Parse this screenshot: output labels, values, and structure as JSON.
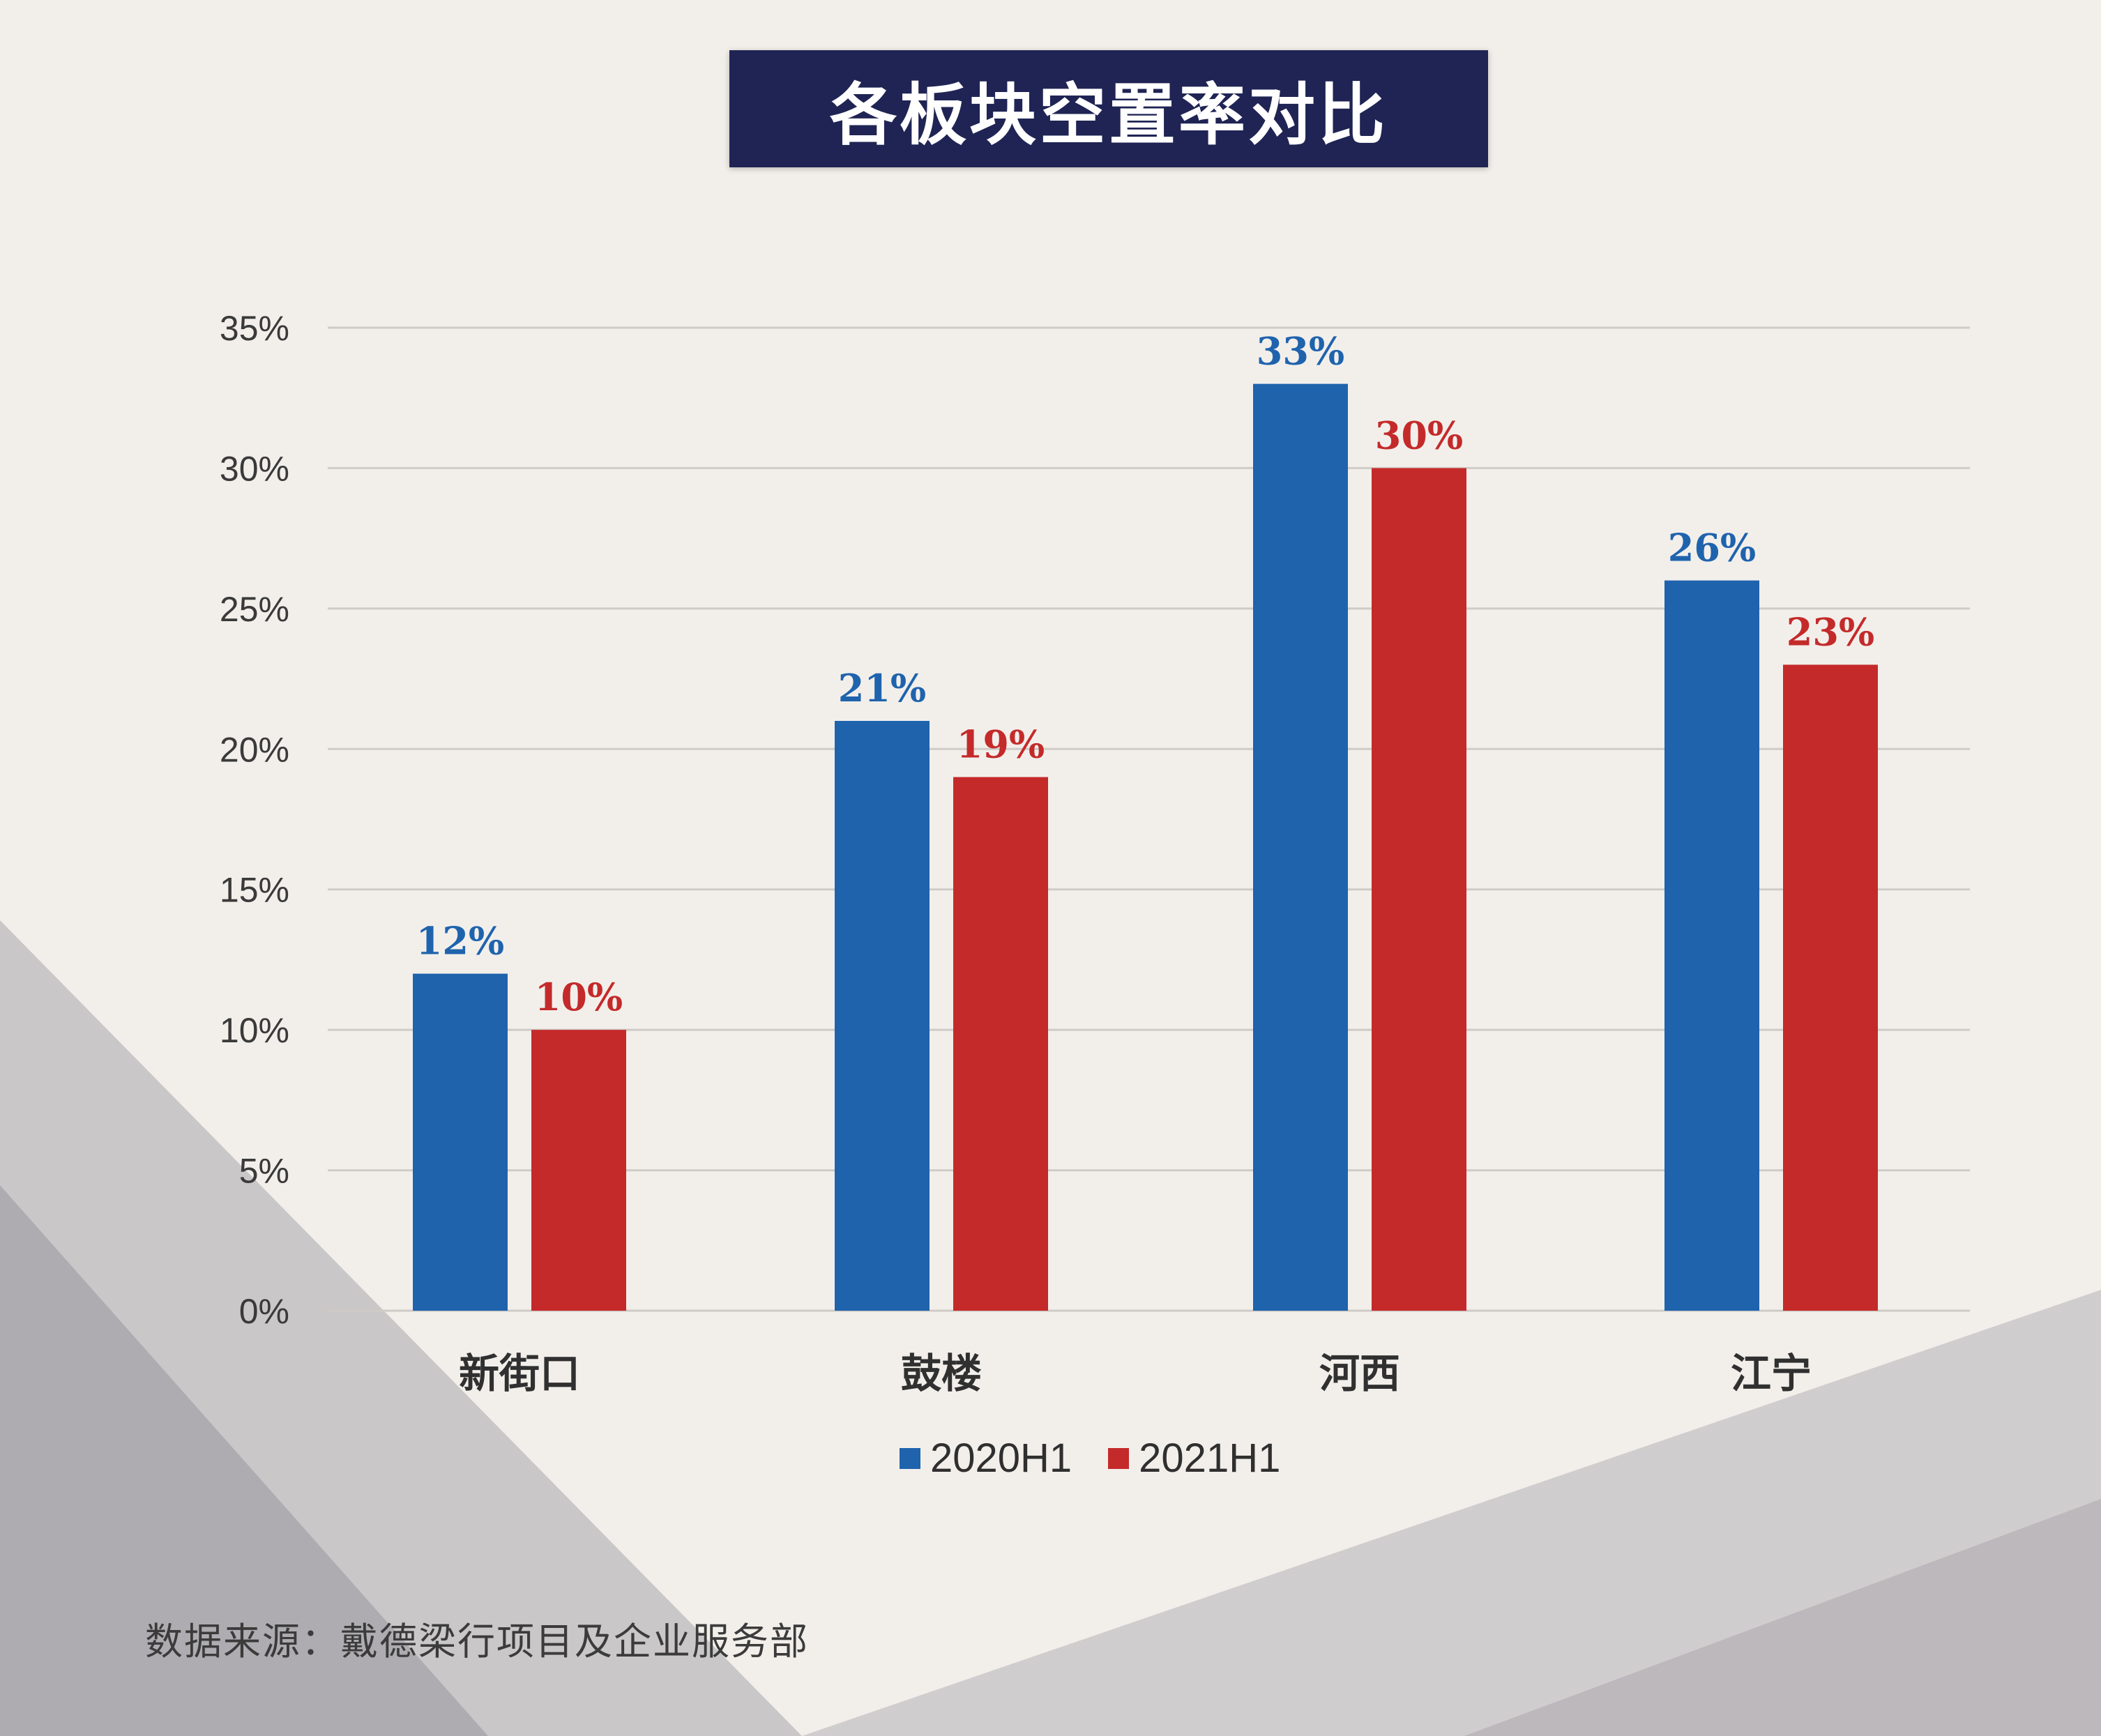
{
  "title": "各板块空置率对比",
  "source": "数据来源：戴德梁行项目及企业服务部",
  "colors": {
    "series_2020": "#1f63ad",
    "series_2021": "#c42a2a",
    "title_bg": "#1f2454"
  },
  "chart_data": {
    "type": "bar",
    "title": "各板块空置率对比",
    "categories": [
      "新街口",
      "鼓楼",
      "河西",
      "江宁"
    ],
    "series": [
      {
        "name": "2020H1",
        "values": [
          12,
          21,
          33,
          26
        ],
        "labels": [
          "12%",
          "21%",
          "33%",
          "26%"
        ]
      },
      {
        "name": "2021H1",
        "values": [
          10,
          19,
          30,
          23
        ],
        "labels": [
          "10%",
          "19%",
          "30%",
          "23%"
        ]
      }
    ],
    "ylim": [
      0,
      35
    ],
    "yticks": [
      "0%",
      "5%",
      "10%",
      "15%",
      "20%",
      "25%",
      "30%",
      "35%"
    ],
    "grid": true,
    "legend": "bottom"
  }
}
